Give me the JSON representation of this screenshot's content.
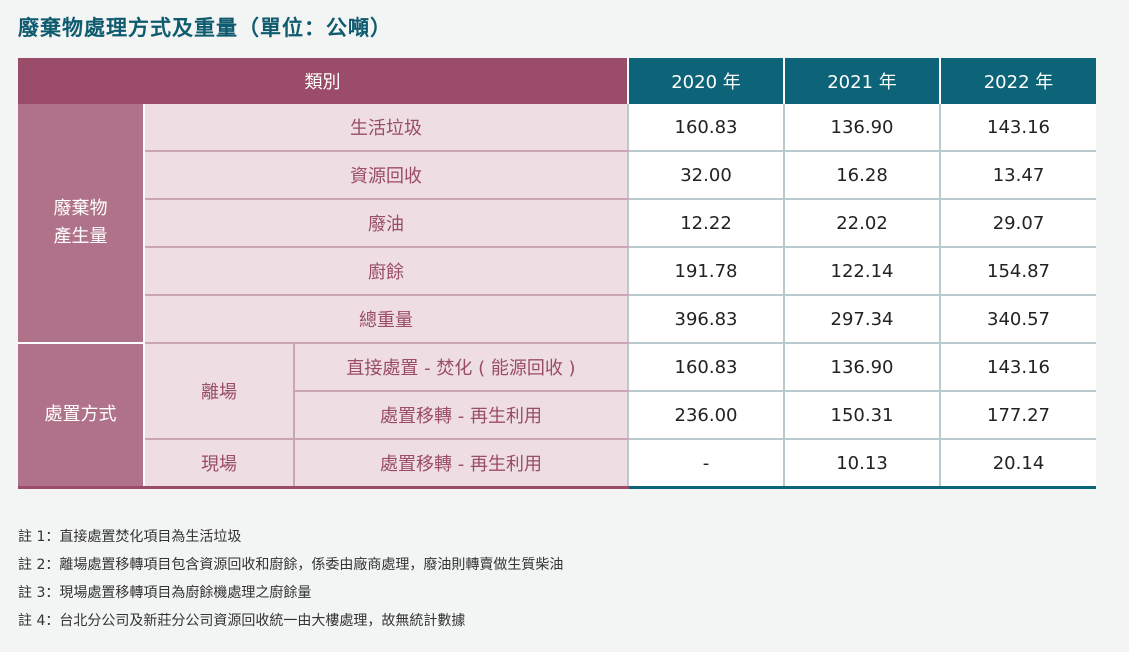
{
  "title": "廢棄物處理方式及重量（單位：公噸）",
  "header": {
    "category": "類別",
    "years": [
      "2020 年",
      "2021 年",
      "2022 年"
    ]
  },
  "groups": {
    "generation": "廢棄物產生量",
    "generation_line1": "廢棄物",
    "generation_line2": "產生量",
    "treatment": "處置方式",
    "offsite": "離場",
    "onsite": "現場"
  },
  "rows": [
    {
      "label": "生活垃圾",
      "values": [
        "160.83",
        "136.90",
        "143.16"
      ]
    },
    {
      "label": "資源回收",
      "values": [
        "32.00",
        "16.28",
        "13.47"
      ]
    },
    {
      "label": "廢油",
      "values": [
        "12.22",
        "22.02",
        "29.07"
      ]
    },
    {
      "label": "廚餘",
      "values": [
        "191.78",
        "122.14",
        "154.87"
      ]
    },
    {
      "label": "總重量",
      "values": [
        "396.83",
        "297.34",
        "340.57"
      ]
    },
    {
      "label": "直接處置 - 焚化 ( 能源回收 )",
      "values": [
        "160.83",
        "136.90",
        "143.16"
      ]
    },
    {
      "label": "處置移轉 - 再生利用",
      "values": [
        "236.00",
        "150.31",
        "177.27"
      ]
    },
    {
      "label": "處置移轉 - 再生利用",
      "values": [
        "-",
        "10.13",
        "20.14"
      ]
    }
  ],
  "notes": [
    "註 1：直接處置焚化項目為生活垃圾",
    "註 2：離場處置移轉項目包含資源回收和廚餘，係委由廠商處理，廢油則轉賣做生質柴油",
    "註 3：現場處置移轉項目為廚餘機處理之廚餘量",
    "註 4：台北分公司及新莊分公司資源回收統一由大樓處理，故無統計數據"
  ]
}
